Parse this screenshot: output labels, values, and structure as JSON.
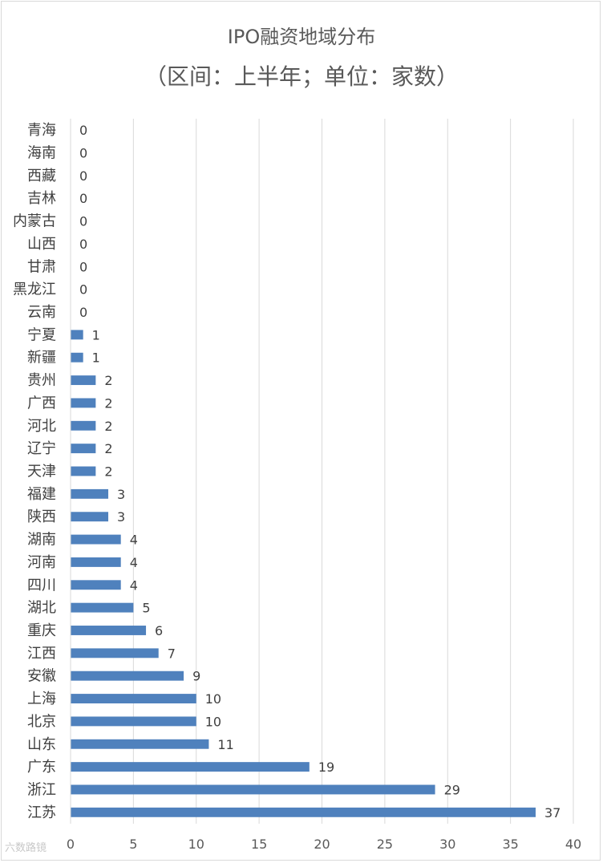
{
  "title": "IPO融资地域分布",
  "subtitle": "（区间：上半年；单位：家数）",
  "watermark": "六数路镜",
  "chart_data": {
    "type": "bar",
    "orientation": "horizontal",
    "title": "IPO融资地域分布",
    "subtitle": "（区间：上半年；单位：家数）",
    "categories": [
      "青海",
      "海南",
      "西藏",
      "吉林",
      "内蒙古",
      "山西",
      "甘肃",
      "黑龙江",
      "云南",
      "宁夏",
      "新疆",
      "贵州",
      "广西",
      "河北",
      "辽宁",
      "天津",
      "福建",
      "陕西",
      "湖南",
      "河南",
      "四川",
      "湖北",
      "重庆",
      "江西",
      "安徽",
      "上海",
      "北京",
      "山东",
      "广东",
      "浙江",
      "江苏"
    ],
    "values": [
      0,
      0,
      0,
      0,
      0,
      0,
      0,
      0,
      0,
      1,
      1,
      2,
      2,
      2,
      2,
      2,
      3,
      3,
      4,
      4,
      4,
      5,
      6,
      7,
      9,
      10,
      10,
      11,
      19,
      29,
      37
    ],
    "xlim": [
      0,
      40
    ],
    "xticks": [
      0,
      5,
      10,
      15,
      20,
      25,
      30,
      35,
      40
    ],
    "grid": "vertical",
    "data_labels": true,
    "bar_color": "#4f81bd"
  }
}
